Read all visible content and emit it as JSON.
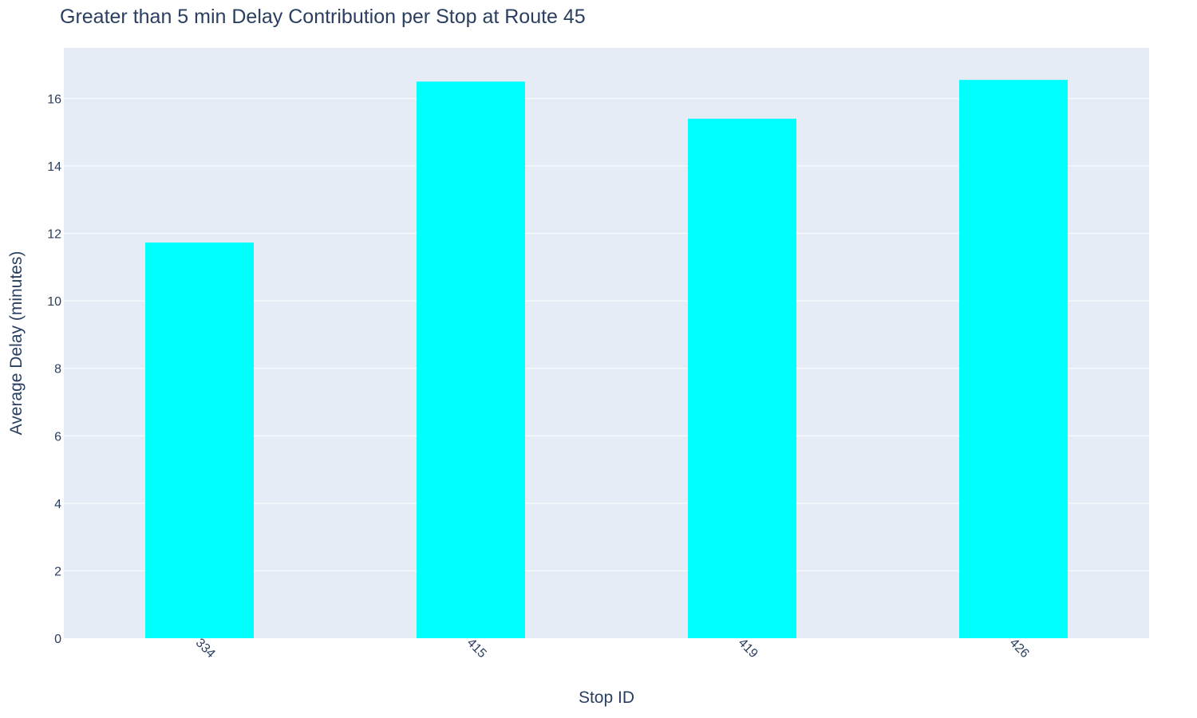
{
  "chart_data": {
    "type": "bar",
    "title": "Greater than 5 min Delay Contribution per Stop at Route 45",
    "xlabel": "Stop ID",
    "ylabel": "Average Delay (minutes)",
    "categories": [
      "334",
      "415",
      "419",
      "426"
    ],
    "values": [
      11.73,
      16.5,
      15.4,
      16.55
    ],
    "ylim": [
      0,
      17.5
    ],
    "yticks": [
      0,
      2,
      4,
      6,
      8,
      10,
      12,
      14,
      16
    ],
    "grid": true,
    "legend": "none",
    "colors": {
      "bar": "#00ffff",
      "plot_background": "#e5ecf6",
      "grid": "#ffffff",
      "text": "#2a3f5f"
    }
  }
}
